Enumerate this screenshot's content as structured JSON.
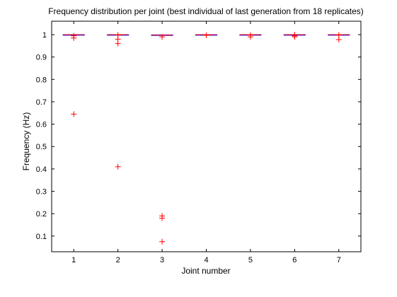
{
  "chart_data": {
    "type": "boxplot",
    "title": "Frequency distribution per joint (best individual of last generation from 18 replicates)",
    "xlabel": "Joint number",
    "ylabel": "Frequency (Hz)",
    "categories": [
      "1",
      "2",
      "3",
      "4",
      "5",
      "6",
      "7"
    ],
    "xlim": [
      0.5,
      7.5
    ],
    "ylim": [
      0.03,
      1.06
    ],
    "yticks": [
      0.1,
      0.2,
      0.3,
      0.4,
      0.5,
      0.6,
      0.7,
      0.8,
      0.9,
      1
    ],
    "ytick_labels": [
      "0.1",
      "0.2",
      "0.3",
      "0.4",
      "0.5",
      "0.6",
      "0.7",
      "0.8",
      "0.9",
      "1"
    ],
    "grid": false,
    "box_color": "#0000ff",
    "median_color": "#ff0000",
    "outlier_color": "#ff0000",
    "boxes": [
      {
        "joint": "1",
        "q1": 0.998,
        "median": 1.0,
        "q3": 1.0,
        "whisker_low": 0.998,
        "whisker_high": 1.0,
        "outliers": [
          0.995,
          0.985,
          0.645
        ]
      },
      {
        "joint": "2",
        "q1": 0.999,
        "median": 1.0,
        "q3": 1.0,
        "whisker_low": 0.999,
        "whisker_high": 1.0,
        "outliers": [
          0.998,
          0.98,
          0.96,
          0.41
        ]
      },
      {
        "joint": "3",
        "q1": 0.997,
        "median": 0.998,
        "q3": 0.999,
        "whisker_low": 0.996,
        "whisker_high": 1.0,
        "outliers": [
          0.99,
          0.19,
          0.18,
          0.075
        ]
      },
      {
        "joint": "4",
        "q1": 0.999,
        "median": 1.0,
        "q3": 1.0,
        "whisker_low": 0.999,
        "whisker_high": 1.0,
        "outliers": [
          0.997
        ]
      },
      {
        "joint": "5",
        "q1": 0.999,
        "median": 1.0,
        "q3": 1.0,
        "whisker_low": 0.999,
        "whisker_high": 1.0,
        "outliers": [
          0.998,
          0.99
        ]
      },
      {
        "joint": "6",
        "q1": 0.998,
        "median": 1.0,
        "q3": 1.0,
        "whisker_low": 0.998,
        "whisker_high": 1.0,
        "outliers": [
          1.0,
          0.995,
          0.99
        ]
      },
      {
        "joint": "7",
        "q1": 0.999,
        "median": 1.0,
        "q3": 1.0,
        "whisker_low": 0.999,
        "whisker_high": 1.0,
        "outliers": [
          0.998,
          0.978
        ]
      }
    ]
  }
}
